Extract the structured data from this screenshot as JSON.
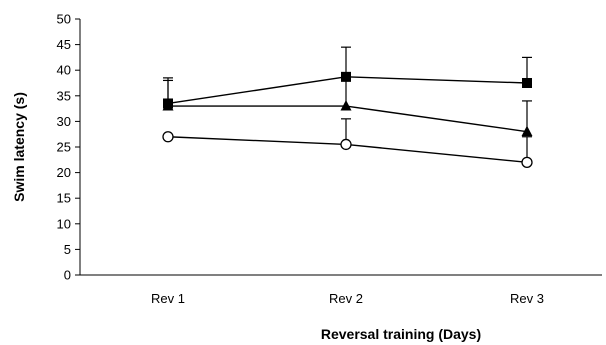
{
  "chart_data": {
    "type": "line",
    "title": "",
    "xlabel": "Reversal training (Days)",
    "ylabel": "Swim latency (s)",
    "categories": [
      "Rev 1",
      "Rev 2",
      "Rev 3"
    ],
    "ylim": [
      0,
      50
    ],
    "yticks": [
      "0",
      "5",
      "10",
      "15",
      "20",
      "25",
      "30",
      "35",
      "40",
      "45",
      "50"
    ],
    "grid": false,
    "series": [
      {
        "marker": "square",
        "values": [
          33.5,
          38.7,
          37.5
        ],
        "error_upper": [
          38.5,
          44.5,
          42.5
        ],
        "color": "#000000"
      },
      {
        "marker": "triangle",
        "values": [
          33,
          33,
          28
        ],
        "error_upper": [
          38,
          38,
          34
        ],
        "color": "#000000"
      },
      {
        "marker": "circle-open",
        "values": [
          27,
          25.5,
          22
        ],
        "error_upper": [
          27,
          30.5,
          27
        ],
        "color": "#000000"
      }
    ]
  }
}
